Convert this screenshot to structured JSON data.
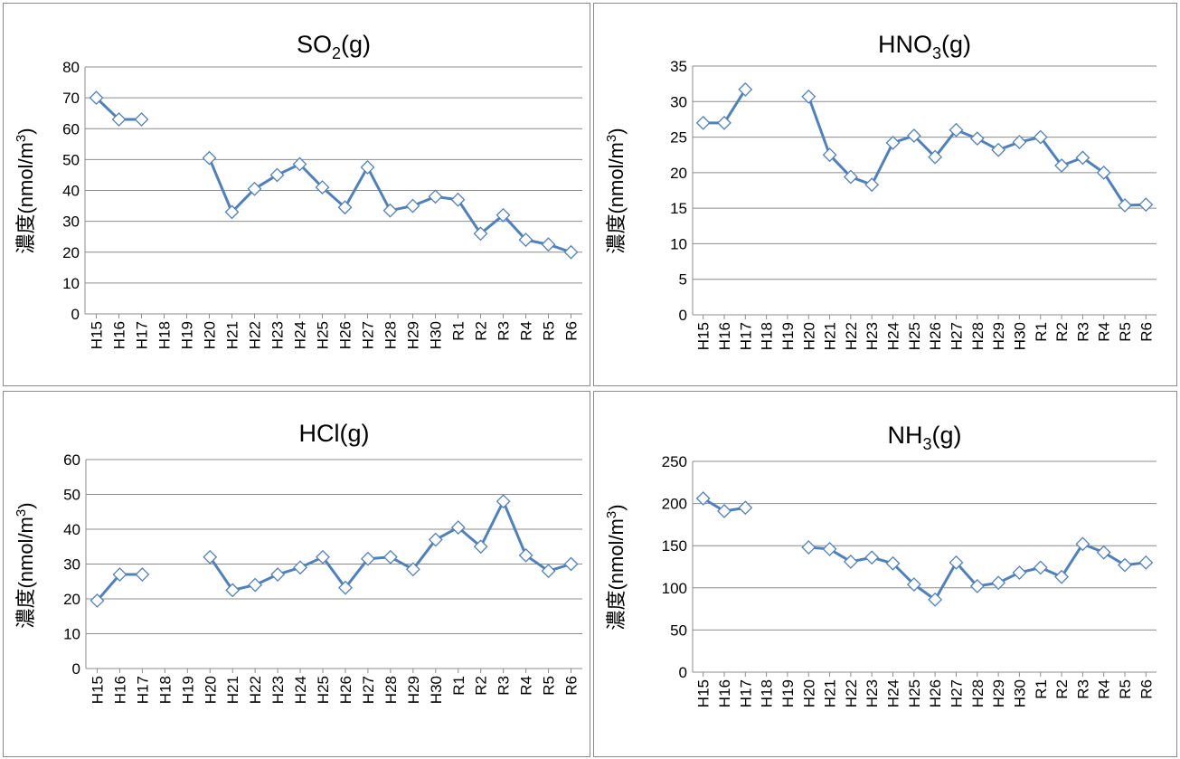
{
  "colors": {
    "series": "#4f81bd",
    "grid": "#8c8c8c"
  },
  "chart_data": [
    {
      "type": "line",
      "title": "SO2(g)",
      "title_main": "SO",
      "title_sub": "2",
      "title_tail": "(g)",
      "ylabel": "濃度(nmol/m3)",
      "ylabel_main": "濃度(nmol/m",
      "ylabel_sup": "3",
      "ylabel_tail": ")",
      "ylim": [
        0,
        80
      ],
      "ystep": 10,
      "yticks": [
        "0",
        "10",
        "20",
        "30",
        "40",
        "50",
        "60",
        "70",
        "80"
      ],
      "categories": [
        "H15",
        "H16",
        "H17",
        "H18",
        "H19",
        "H20",
        "H21",
        "H22",
        "H23",
        "H24",
        "H25",
        "H26",
        "H27",
        "H28",
        "H29",
        "H30",
        "R1",
        "R2",
        "R3",
        "R4",
        "R5",
        "R6"
      ],
      "values": [
        70,
        63,
        63,
        null,
        null,
        50.5,
        33,
        40.5,
        45,
        48.5,
        41,
        34.5,
        47.5,
        33.5,
        35,
        38,
        37,
        26,
        32,
        24,
        22.5,
        20
      ],
      "grid": true,
      "legend": "none"
    },
    {
      "type": "line",
      "title": "HNO3(g)",
      "title_main": "HNO",
      "title_sub": "3",
      "title_tail": "(g)",
      "ylabel": "濃度(nmol/m3)",
      "ylabel_main": "濃度(nmol/m",
      "ylabel_sup": "3",
      "ylabel_tail": ")",
      "ylim": [
        0,
        35
      ],
      "ystep": 5,
      "yticks": [
        "0",
        "5",
        "10",
        "15",
        "20",
        "25",
        "30",
        "35"
      ],
      "categories": [
        "H15",
        "H16",
        "H17",
        "H18",
        "H19",
        "H20",
        "H21",
        "H22",
        "H23",
        "H24",
        "H25",
        "H26",
        "H27",
        "H28",
        "H29",
        "H30",
        "R1",
        "R2",
        "R3",
        "R4",
        "R5",
        "R6"
      ],
      "values": [
        27,
        27,
        31.7,
        null,
        null,
        30.7,
        22.5,
        19.4,
        18.3,
        24.2,
        25.2,
        22.2,
        26,
        24.8,
        23.2,
        24.3,
        25,
        21,
        22.1,
        20,
        15.4,
        15.5
      ],
      "grid": true,
      "legend": "none"
    },
    {
      "type": "line",
      "title": "HCl(g)",
      "title_main": "HCl",
      "title_sub": "",
      "title_tail": "(g)",
      "ylabel": "濃度(nmol/m3)",
      "ylabel_main": "濃度(nmol/m",
      "ylabel_sup": "3",
      "ylabel_tail": ")",
      "ylim": [
        0,
        60
      ],
      "ystep": 10,
      "yticks": [
        "0",
        "10",
        "20",
        "30",
        "40",
        "50",
        "60"
      ],
      "categories": [
        "H15",
        "H16",
        "H17",
        "H18",
        "H19",
        "H20",
        "H21",
        "H22",
        "H23",
        "H24",
        "H25",
        "H26",
        "H27",
        "H28",
        "H29",
        "H30",
        "R1",
        "R2",
        "R3",
        "R4",
        "R5",
        "R6"
      ],
      "values": [
        19.5,
        27,
        27,
        null,
        null,
        32,
        22.5,
        24,
        27,
        29,
        32,
        23.2,
        31.5,
        32,
        28.5,
        37,
        40.5,
        35,
        48,
        32.5,
        28,
        30
      ],
      "grid": true,
      "legend": "none"
    },
    {
      "type": "line",
      "title": "NH3(g)",
      "title_main": "NH",
      "title_sub": "3",
      "title_tail": "(g)",
      "ylabel": "濃度(nmol/m3)",
      "ylabel_main": "濃度(nmol/m",
      "ylabel_sup": "3",
      "ylabel_tail": ")",
      "ylim": [
        0,
        250
      ],
      "ystep": 50,
      "yticks": [
        "0",
        "50",
        "100",
        "150",
        "200",
        "250"
      ],
      "categories": [
        "H15",
        "H16",
        "H17",
        "H18",
        "H19",
        "H20",
        "H21",
        "H22",
        "H23",
        "H24",
        "H25",
        "H26",
        "H27",
        "H28",
        "H29",
        "H30",
        "R1",
        "R2",
        "R3",
        "R4",
        "R5",
        "R6"
      ],
      "values": [
        206,
        191,
        195,
        null,
        null,
        148,
        146,
        131,
        136,
        129,
        104,
        86,
        130,
        102,
        106,
        118,
        124,
        113,
        152,
        142,
        127,
        130
      ],
      "grid": true,
      "legend": "none"
    }
  ]
}
